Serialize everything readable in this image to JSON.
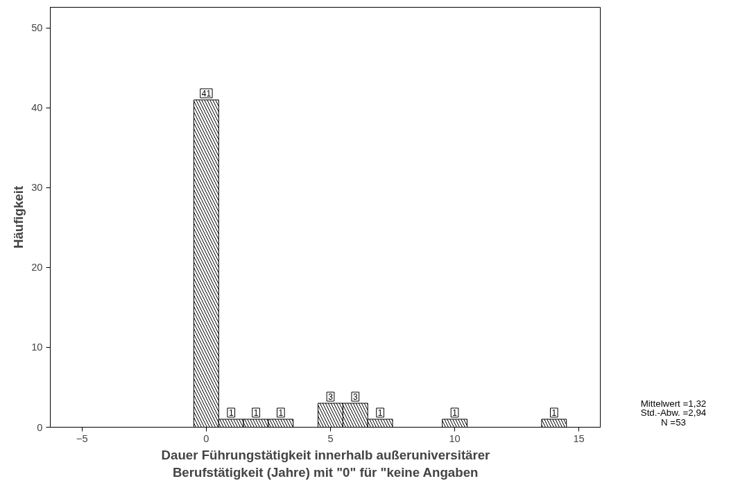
{
  "chart_data": {
    "type": "histogram",
    "xlabel": "Dauer Führungstätigkeit innerhalb außeruniversitärer\nBerufstätigkeit (Jahre) mit \"0\" für \"keine Angaben",
    "ylabel": "Häufigkeit",
    "bins": [
      -0.5,
      0.5,
      1.5,
      2.5,
      3.5,
      4.5,
      5.5,
      6.5,
      7.5,
      8.5,
      9.5,
      10.5,
      11.5,
      12.5,
      13.5,
      14.5
    ],
    "values": [
      41,
      1,
      1,
      1,
      0,
      3,
      3,
      1,
      0,
      0,
      1,
      0,
      0,
      0,
      1
    ],
    "value_labels": [
      "41",
      "1",
      "1",
      "1",
      null,
      "3",
      "3",
      "1",
      null,
      null,
      "1",
      null,
      null,
      null,
      "1"
    ],
    "color": "#000000",
    "xlim": [
      -6.28,
      15.89
    ],
    "xticks": [
      -5,
      0,
      5,
      10,
      15
    ],
    "ylim": [
      0,
      52.6
    ],
    "yticks": [
      0,
      10,
      20,
      30,
      40,
      50
    ],
    "grid": false,
    "annotations": [
      "Mittelwert =1,32\nStd.-Abw. =2,94\nN =53"
    ]
  }
}
